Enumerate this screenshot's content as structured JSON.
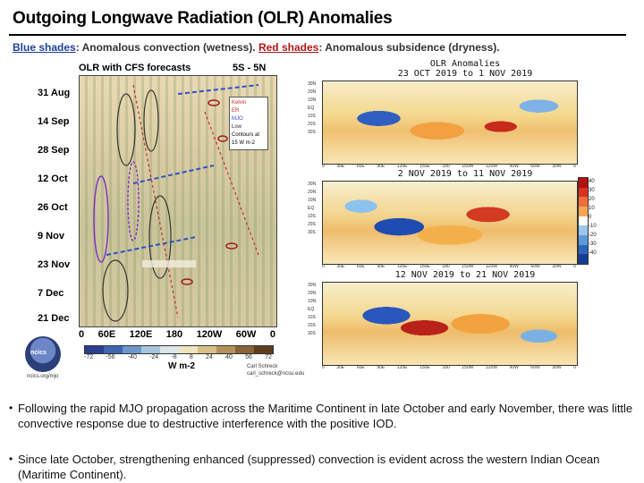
{
  "header": {
    "title": "Outgoing Longwave Radiation (OLR) Anomalies",
    "subtitle_blue": "Blue shades",
    "subtitle_mid": ": Anomalous convection (wetness). ",
    "subtitle_red": "Red shades",
    "subtitle_end": ": Anomalous subsidence (dryness)."
  },
  "hovmoller": {
    "title": "OLR with CFS forecasts",
    "region": "5S - 5N",
    "dates": [
      "31 Aug",
      "14 Sep",
      "28 Sep",
      "12 Oct",
      "26 Oct",
      "9 Nov",
      "23 Nov",
      "7 Dec",
      "21 Dec"
    ],
    "lons": [
      "0",
      "60E",
      "120E",
      "180",
      "120W",
      "60W",
      "0"
    ],
    "legend": [
      "Kelvin",
      "ER",
      "MJO",
      "Low",
      "Contours at",
      "15 W m-2"
    ],
    "colorbar_ticks": [
      "-72",
      "-56",
      "-40",
      "-24",
      "-8",
      "8",
      "24",
      "40",
      "56",
      "72"
    ],
    "colorbar_units": "W m-2",
    "colorbar_colors": [
      "#2a3f8f",
      "#3f66b3",
      "#6e97c9",
      "#a7c4dd",
      "#d9e6ea",
      "#efe3bf",
      "#d8bf86",
      "#b5915a",
      "#8a6336",
      "#5e3d1d"
    ],
    "logo_text": "ncics",
    "logo_url": "ncics.org/mjo",
    "credit_name": "Carl Schreck",
    "credit_email": "carl_schreck@ncsu.edu"
  },
  "maps": {
    "header_title": "OLR Anomalies",
    "periods": [
      "23 OCT 2019 to 1 NOV 2019",
      "2 NOV 2019 to 11 NOV 2019",
      "12 NOV 2019 to 21 NOV 2019"
    ],
    "lats": [
      "30N",
      "25N",
      "20N",
      "15N",
      "10N",
      "5N",
      "EQ",
      "5S",
      "10S",
      "15S",
      "20S",
      "25S",
      "30S"
    ],
    "lons": [
      "0",
      "30E",
      "60E",
      "90E",
      "120E",
      "150E",
      "180",
      "150W",
      "120W",
      "90W",
      "60W",
      "30W",
      "0"
    ],
    "scale_labels": [
      "40",
      "30",
      "20",
      "10",
      "0",
      "-10",
      "-20",
      "-30",
      "-40"
    ],
    "scale_colors": [
      "#b3100e",
      "#d9321d",
      "#ef6e3a",
      "#f6a555",
      "#ffffff",
      "#9cc6ea",
      "#5d9ad8",
      "#2f64bd",
      "#173c95"
    ]
  },
  "bullets": [
    "Following the rapid MJO propagation across the Maritime Continent in late October and early November, there was little convective response due to destructive interference with the positive IOD.",
    "Since late October, strengthening enhanced (suppressed) convection is evident across the western Indian Ocean (Maritime Continent)."
  ]
}
